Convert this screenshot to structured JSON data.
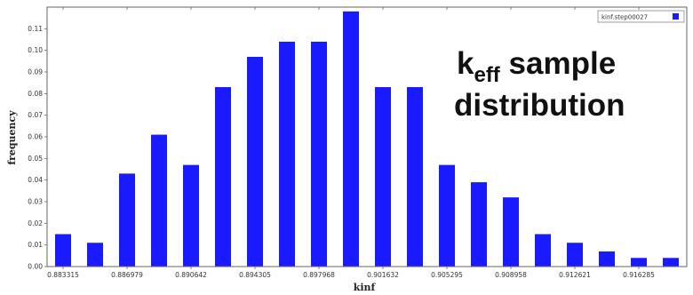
{
  "chart_data": {
    "type": "bar",
    "ylabel": "frequency",
    "xlabel": "kinf",
    "ylim": [
      0,
      0.12
    ],
    "y_ticks": [
      0.0,
      0.01,
      0.02,
      0.03,
      0.04,
      0.05,
      0.06,
      0.07,
      0.08,
      0.09,
      0.1,
      0.11
    ],
    "y_tick_labels": [
      "0.00",
      "0.01",
      "0.02",
      "0.03",
      "0.04",
      "0.05",
      "0.06",
      "0.07",
      "0.08",
      "0.09",
      "0.10",
      "0.11"
    ],
    "x_tick_labels": [
      "0.883315",
      "0.886979",
      "0.890642",
      "0.894305",
      "0.897968",
      "0.901632",
      "0.905295",
      "0.908958",
      "0.912621",
      "0.916285"
    ],
    "values": [
      0.015,
      0.011,
      0.043,
      0.061,
      0.047,
      0.083,
      0.097,
      0.104,
      0.104,
      0.118,
      0.083,
      0.083,
      0.047,
      0.039,
      0.032,
      0.015,
      0.011,
      0.007,
      0.004,
      0.004
    ],
    "bar_color": "#1a1aff",
    "legend": {
      "label": "kinf.step00027",
      "placement": "top-right"
    },
    "grid": false
  },
  "overlay_title": {
    "main": "k",
    "subscript": "eff",
    "line1_rest": " sample",
    "line2": "distribution"
  }
}
